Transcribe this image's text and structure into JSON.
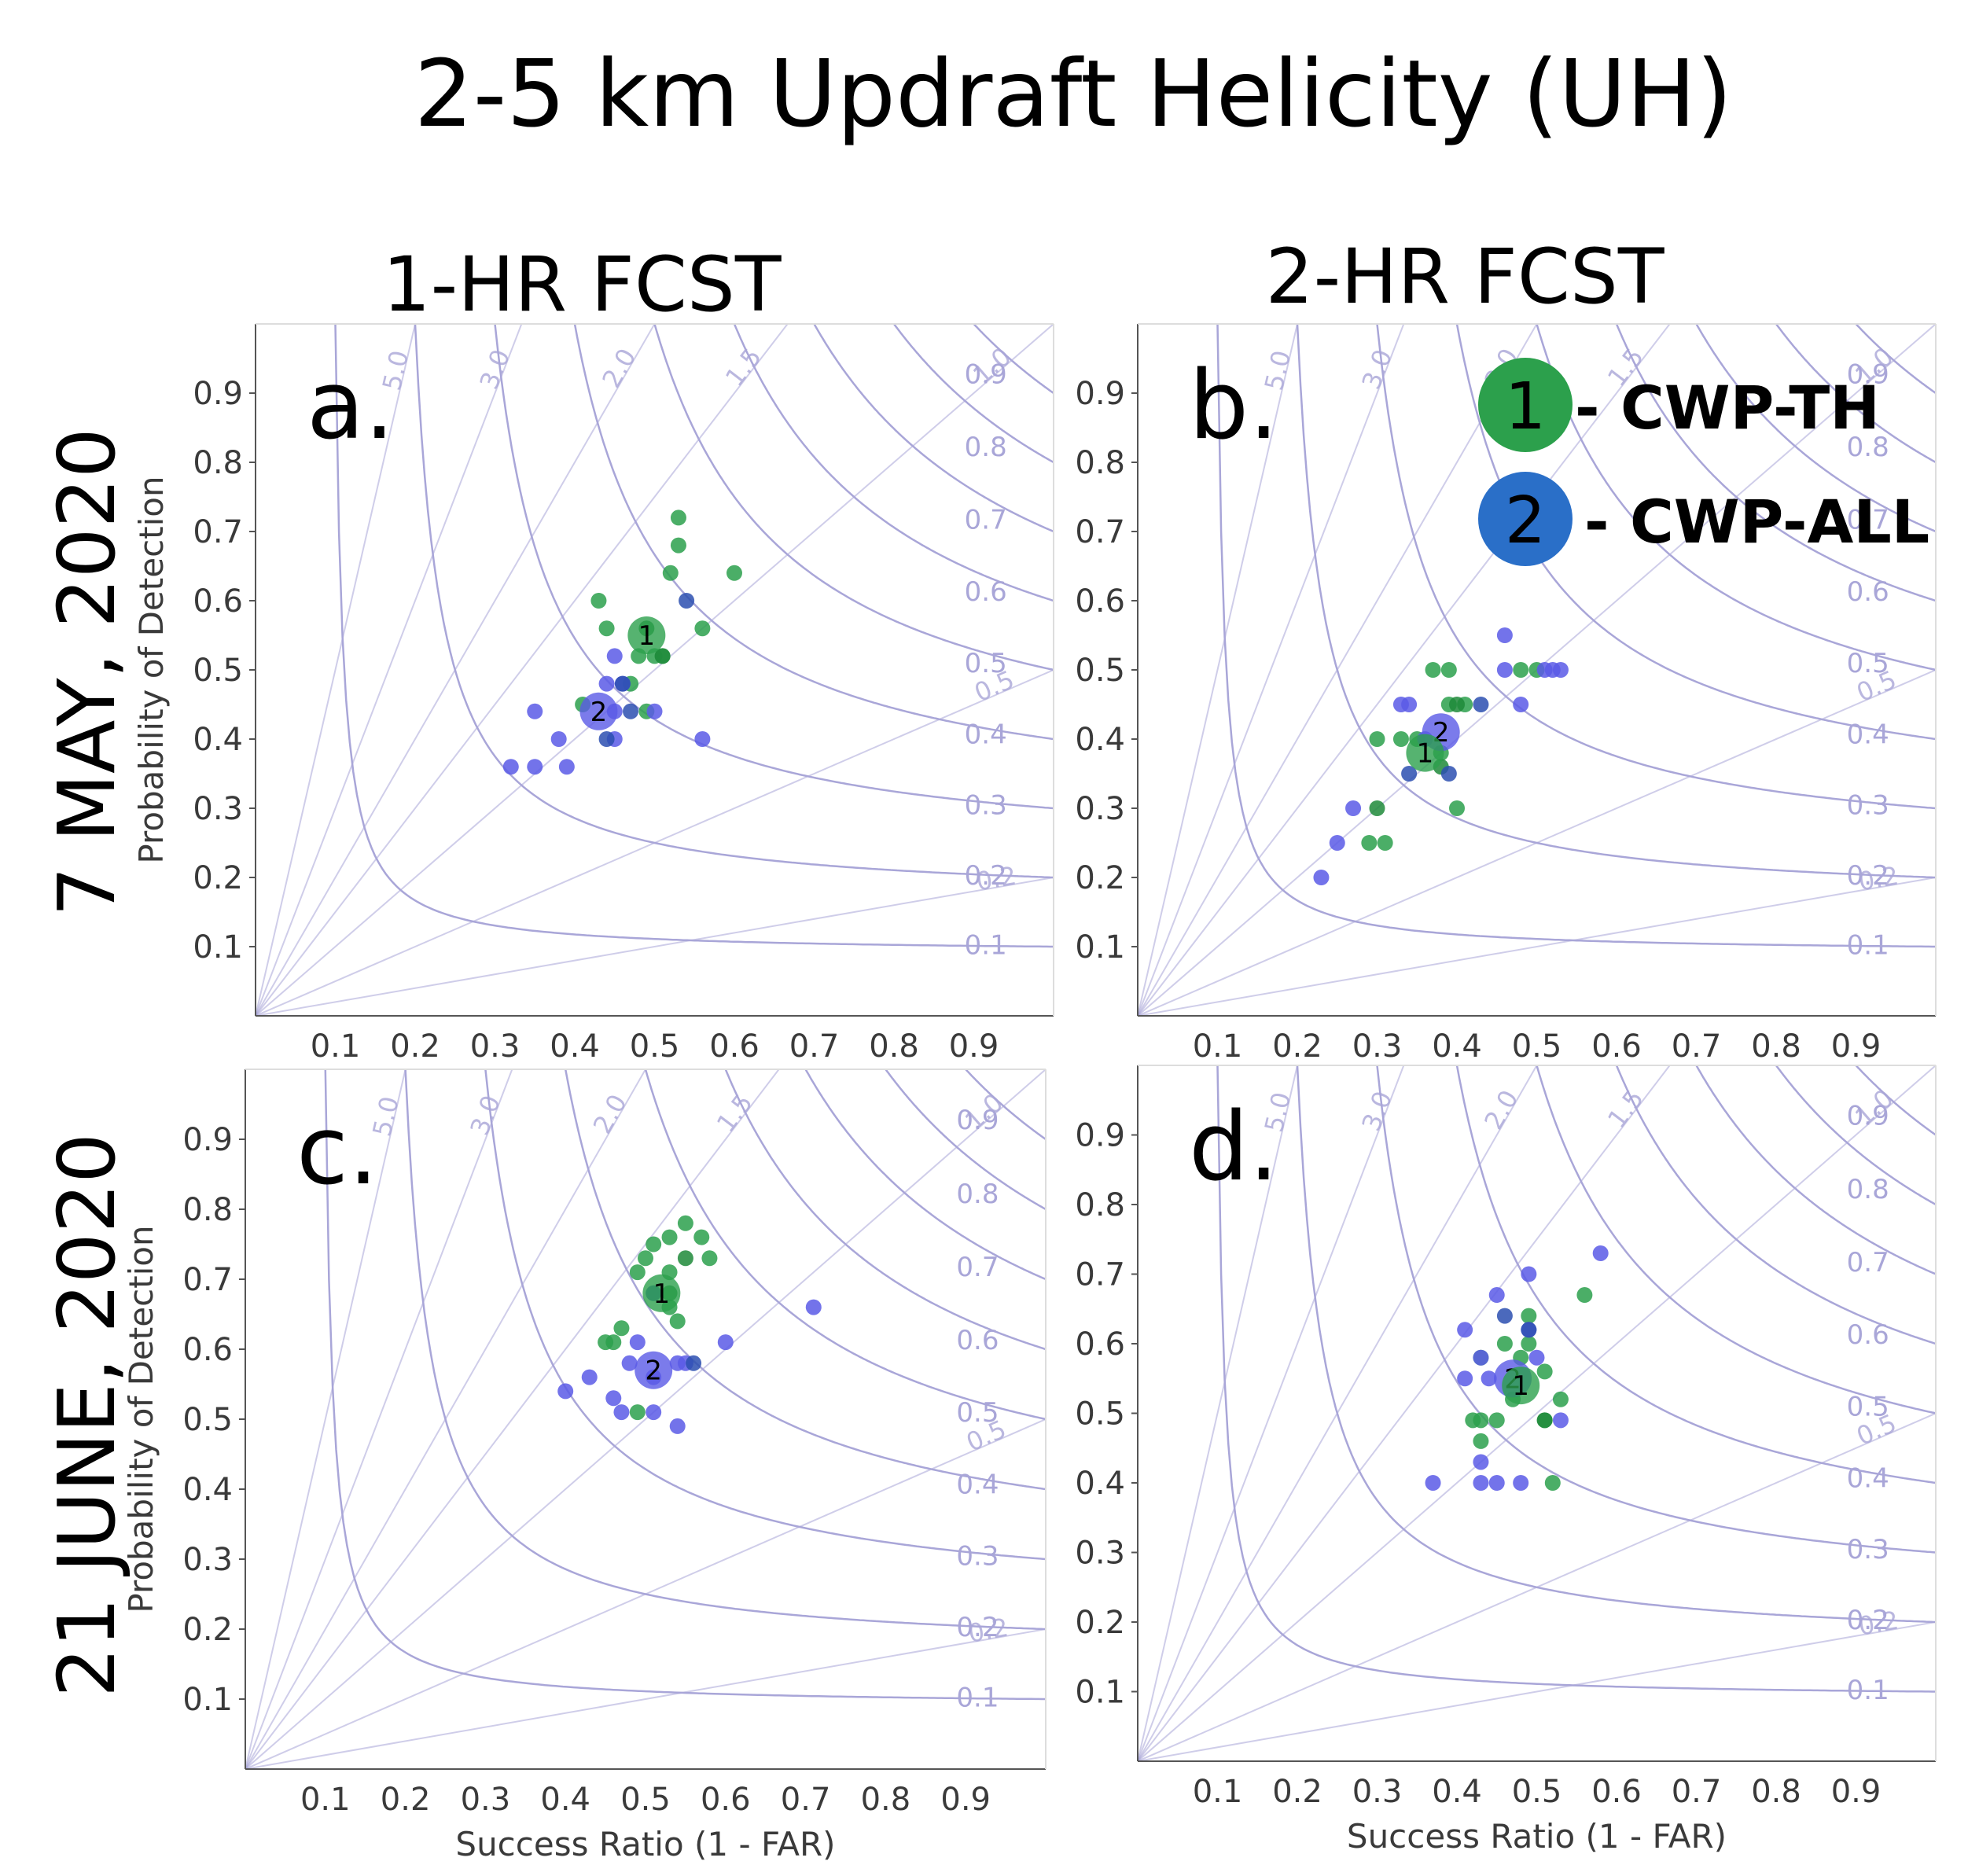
{
  "title": "2-5 km Updraft Helicity (UH)",
  "column_headers": [
    "1-HR FCST",
    "2-HR FCST"
  ],
  "row_labels": [
    "7 MAY, 2020",
    "21 JUNE, 2020"
  ],
  "colors": {
    "green": "#2ca04c",
    "dark_green": "#1f8a3a",
    "blue": "#5a5ae6",
    "dark_blue": "#2b4fb0",
    "legend_blue": "#2a6fc8",
    "contour": "#a9a6d8",
    "contour_label": "#a9a6d8",
    "axis_text": "#3a3a3a"
  },
  "legend": [
    {
      "marker": "1",
      "label": "- CWP-TH",
      "color": "green"
    },
    {
      "marker": "2",
      "label": "- CWP-ALL",
      "color": "legend_blue"
    }
  ],
  "chart_data": [
    {
      "type": "scatter",
      "panel_label": "a.",
      "subtype": "performance_diagram",
      "xlabel": "",
      "ylabel": "Probability of Detection",
      "xlim": [
        0,
        1
      ],
      "ylim": [
        0,
        1
      ],
      "x_ticks": [
        0.1,
        0.2,
        0.3,
        0.4,
        0.5,
        0.6,
        0.7,
        0.8,
        0.9
      ],
      "y_ticks": [
        0.1,
        0.2,
        0.3,
        0.4,
        0.5,
        0.6,
        0.7,
        0.8,
        0.9
      ],
      "csi_contours": [
        0.1,
        0.2,
        0.3,
        0.4,
        0.5,
        0.6,
        0.7,
        0.8,
        0.9
      ],
      "bias_lines": [
        5.0,
        3.0,
        2.0,
        1.5,
        1.0,
        0.5,
        0.2
      ],
      "series": [
        {
          "name": "CWP-TH",
          "color": "green",
          "points": [
            [
              0.53,
              0.72
            ],
            [
              0.53,
              0.68
            ],
            [
              0.6,
              0.64
            ],
            [
              0.52,
              0.64
            ],
            [
              0.43,
              0.6
            ],
            [
              0.44,
              0.56
            ],
            [
              0.56,
              0.56
            ],
            [
              0.48,
              0.52
            ],
            [
              0.5,
              0.52
            ],
            [
              0.51,
              0.52
            ],
            [
              0.41,
              0.45
            ],
            [
              0.47,
              0.48
            ],
            [
              0.49,
              0.44
            ]
          ]
        },
        {
          "name": "CWP-TH-dark",
          "color": "dark_green",
          "points": [
            [
              0.51,
              0.52
            ],
            [
              0.49,
              0.56
            ]
          ]
        },
        {
          "name": "CWP-ALL",
          "color": "blue",
          "points": [
            [
              0.45,
              0.52
            ],
            [
              0.44,
              0.48
            ],
            [
              0.46,
              0.48
            ],
            [
              0.35,
              0.44
            ],
            [
              0.45,
              0.44
            ],
            [
              0.5,
              0.44
            ],
            [
              0.38,
              0.4
            ],
            [
              0.45,
              0.4
            ],
            [
              0.56,
              0.4
            ],
            [
              0.32,
              0.36
            ],
            [
              0.35,
              0.36
            ],
            [
              0.39,
              0.36
            ]
          ]
        },
        {
          "name": "CWP-ALL-dark",
          "color": "dark_blue",
          "points": [
            [
              0.54,
              0.6
            ],
            [
              0.46,
              0.48
            ],
            [
              0.47,
              0.44
            ],
            [
              0.44,
              0.4
            ]
          ]
        }
      ],
      "means": [
        {
          "label": "1",
          "color": "green",
          "x": 0.49,
          "y": 0.55
        },
        {
          "label": "2",
          "color": "blue",
          "x": 0.43,
          "y": 0.44
        }
      ]
    },
    {
      "type": "scatter",
      "panel_label": "b.",
      "subtype": "performance_diagram",
      "xlabel": "",
      "ylabel": "",
      "xlim": [
        0,
        1
      ],
      "ylim": [
        0,
        1
      ],
      "x_ticks": [
        0.1,
        0.2,
        0.3,
        0.4,
        0.5,
        0.6,
        0.7,
        0.8,
        0.9
      ],
      "y_ticks": [
        0.1,
        0.2,
        0.3,
        0.4,
        0.5,
        0.6,
        0.7,
        0.8,
        0.9
      ],
      "csi_contours": [
        0.1,
        0.2,
        0.3,
        0.4,
        0.5,
        0.6,
        0.7,
        0.8,
        0.9
      ],
      "bias_lines": [
        5.0,
        3.0,
        2.0,
        1.5,
        1.0,
        0.5,
        0.2
      ],
      "series": [
        {
          "name": "CWP-TH",
          "color": "green",
          "points": [
            [
              0.37,
              0.5
            ],
            [
              0.39,
              0.5
            ],
            [
              0.48,
              0.5
            ],
            [
              0.5,
              0.5
            ],
            [
              0.39,
              0.45
            ],
            [
              0.41,
              0.45
            ],
            [
              0.3,
              0.4
            ],
            [
              0.33,
              0.4
            ],
            [
              0.35,
              0.4
            ],
            [
              0.38,
              0.38
            ],
            [
              0.4,
              0.3
            ],
            [
              0.29,
              0.25
            ],
            [
              0.31,
              0.25
            ]
          ]
        },
        {
          "name": "CWP-TH-dark",
          "color": "dark_green",
          "points": [
            [
              0.3,
              0.3
            ],
            [
              0.4,
              0.45
            ],
            [
              0.38,
              0.36
            ]
          ]
        },
        {
          "name": "CWP-ALL",
          "color": "blue",
          "points": [
            [
              0.46,
              0.55
            ],
            [
              0.46,
              0.5
            ],
            [
              0.51,
              0.5
            ],
            [
              0.52,
              0.5
            ],
            [
              0.53,
              0.5
            ],
            [
              0.33,
              0.45
            ],
            [
              0.34,
              0.45
            ],
            [
              0.48,
              0.45
            ],
            [
              0.36,
              0.4
            ],
            [
              0.27,
              0.3
            ],
            [
              0.25,
              0.25
            ],
            [
              0.23,
              0.2
            ]
          ]
        },
        {
          "name": "CWP-ALL-dark",
          "color": "dark_blue",
          "points": [
            [
              0.43,
              0.45
            ],
            [
              0.34,
              0.35
            ],
            [
              0.39,
              0.35
            ]
          ]
        }
      ],
      "means": [
        {
          "label": "2",
          "color": "blue",
          "x": 0.38,
          "y": 0.41
        },
        {
          "label": "1",
          "color": "green",
          "x": 0.36,
          "y": 0.38
        }
      ]
    },
    {
      "type": "scatter",
      "panel_label": "c.",
      "subtype": "performance_diagram",
      "xlabel": "Success Ratio (1 - FAR)",
      "ylabel": "Probability of Detection",
      "xlim": [
        0,
        1
      ],
      "ylim": [
        0,
        1
      ],
      "x_ticks": [
        0.1,
        0.2,
        0.3,
        0.4,
        0.5,
        0.6,
        0.7,
        0.8,
        0.9
      ],
      "y_ticks": [
        0.1,
        0.2,
        0.3,
        0.4,
        0.5,
        0.6,
        0.7,
        0.8,
        0.9
      ],
      "csi_contours": [
        0.1,
        0.2,
        0.3,
        0.4,
        0.5,
        0.6,
        0.7,
        0.8,
        0.9
      ],
      "bias_lines": [
        5.0,
        3.0,
        2.0,
        1.5,
        1.0,
        0.5,
        0.2
      ],
      "series": [
        {
          "name": "CWP-TH",
          "color": "green",
          "points": [
            [
              0.55,
              0.78
            ],
            [
              0.53,
              0.76
            ],
            [
              0.57,
              0.76
            ],
            [
              0.51,
              0.75
            ],
            [
              0.5,
              0.73
            ],
            [
              0.58,
              0.73
            ],
            [
              0.49,
              0.71
            ],
            [
              0.53,
              0.71
            ],
            [
              0.53,
              0.66
            ],
            [
              0.54,
              0.64
            ],
            [
              0.47,
              0.63
            ],
            [
              0.46,
              0.61
            ],
            [
              0.45,
              0.61
            ],
            [
              0.49,
              0.51
            ]
          ]
        },
        {
          "name": "CWP-TH-dark",
          "color": "dark_green",
          "points": [
            [
              0.55,
              0.73
            ],
            [
              0.53,
              0.68
            ]
          ]
        },
        {
          "name": "CWP-ALL",
          "color": "blue",
          "points": [
            [
              0.71,
              0.66
            ],
            [
              0.49,
              0.61
            ],
            [
              0.6,
              0.61
            ],
            [
              0.48,
              0.58
            ],
            [
              0.54,
              0.58
            ],
            [
              0.55,
              0.58
            ],
            [
              0.43,
              0.56
            ],
            [
              0.51,
              0.56
            ],
            [
              0.46,
              0.53
            ],
            [
              0.4,
              0.54
            ],
            [
              0.47,
              0.51
            ],
            [
              0.51,
              0.51
            ],
            [
              0.54,
              0.49
            ]
          ]
        },
        {
          "name": "CWP-ALL-dark",
          "color": "dark_blue",
          "points": [
            [
              0.51,
              0.68
            ],
            [
              0.56,
              0.58
            ]
          ]
        }
      ],
      "means": [
        {
          "label": "1",
          "color": "green",
          "x": 0.52,
          "y": 0.68
        },
        {
          "label": "2",
          "color": "blue",
          "x": 0.51,
          "y": 0.57
        }
      ]
    },
    {
      "type": "scatter",
      "panel_label": "d.",
      "subtype": "performance_diagram",
      "xlabel": "Success Ratio (1 - FAR)",
      "ylabel": "",
      "xlim": [
        0,
        1
      ],
      "ylim": [
        0,
        1
      ],
      "x_ticks": [
        0.1,
        0.2,
        0.3,
        0.4,
        0.5,
        0.6,
        0.7,
        0.8,
        0.9
      ],
      "y_ticks": [
        0.1,
        0.2,
        0.3,
        0.4,
        0.5,
        0.6,
        0.7,
        0.8,
        0.9
      ],
      "csi_contours": [
        0.1,
        0.2,
        0.3,
        0.4,
        0.5,
        0.6,
        0.7,
        0.8,
        0.9
      ],
      "bias_lines": [
        5.0,
        3.0,
        2.0,
        1.5,
        1.0,
        0.5,
        0.2
      ],
      "series": [
        {
          "name": "CWP-TH",
          "color": "green",
          "points": [
            [
              0.56,
              0.67
            ],
            [
              0.49,
              0.64
            ],
            [
              0.46,
              0.6
            ],
            [
              0.49,
              0.6
            ],
            [
              0.43,
              0.58
            ],
            [
              0.48,
              0.58
            ],
            [
              0.51,
              0.56
            ],
            [
              0.47,
              0.52
            ],
            [
              0.53,
              0.52
            ],
            [
              0.42,
              0.49
            ],
            [
              0.43,
              0.49
            ],
            [
              0.45,
              0.49
            ],
            [
              0.43,
              0.46
            ],
            [
              0.51,
              0.49
            ],
            [
              0.52,
              0.4
            ]
          ]
        },
        {
          "name": "CWP-TH-dark",
          "color": "dark_green",
          "points": [
            [
              0.51,
              0.49
            ]
          ]
        },
        {
          "name": "CWP-ALL",
          "color": "blue",
          "points": [
            [
              0.58,
              0.73
            ],
            [
              0.49,
              0.7
            ],
            [
              0.45,
              0.67
            ],
            [
              0.41,
              0.62
            ],
            [
              0.49,
              0.62
            ],
            [
              0.43,
              0.58
            ],
            [
              0.5,
              0.58
            ],
            [
              0.41,
              0.55
            ],
            [
              0.53,
              0.49
            ],
            [
              0.43,
              0.43
            ],
            [
              0.37,
              0.4
            ],
            [
              0.43,
              0.4
            ],
            [
              0.45,
              0.4
            ],
            [
              0.48,
              0.4
            ],
            [
              0.44,
              0.55
            ]
          ]
        },
        {
          "name": "CWP-ALL-dark",
          "color": "dark_blue",
          "points": [
            [
              0.46,
              0.64
            ],
            [
              0.49,
              0.62
            ]
          ]
        }
      ],
      "means": [
        {
          "label": "2",
          "color": "blue",
          "x": 0.47,
          "y": 0.55
        },
        {
          "label": "1",
          "color": "green",
          "x": 0.48,
          "y": 0.54
        }
      ]
    }
  ]
}
